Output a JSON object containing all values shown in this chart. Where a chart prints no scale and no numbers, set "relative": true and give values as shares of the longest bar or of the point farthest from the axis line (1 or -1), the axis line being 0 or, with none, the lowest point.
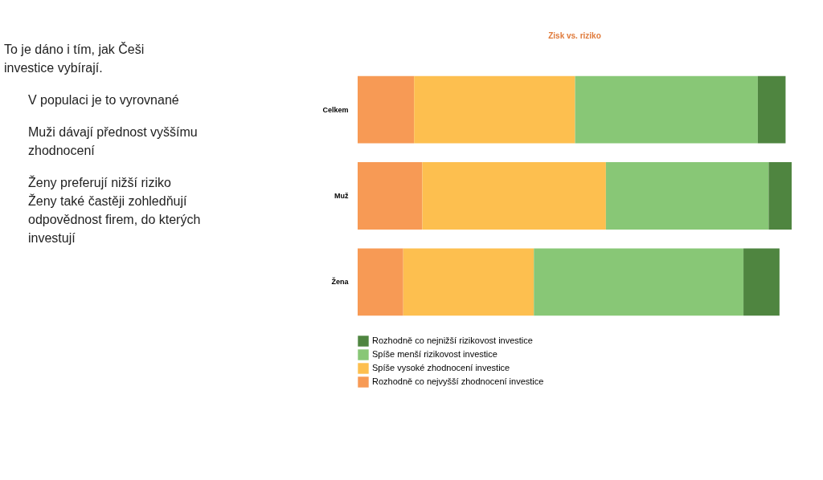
{
  "chart_data": {
    "type": "bar",
    "orientation": "horizontal",
    "stacked": true,
    "relative": true,
    "title": "Zisk vs. riziko",
    "categories": [
      "Celkem",
      "Muž",
      "Žena"
    ],
    "series": [
      {
        "name": "Rozhodně co nejvyšší zhodnocení investice",
        "color": "#f79a55",
        "values": [
          0.13,
          0.149,
          0.105
        ]
      },
      {
        "name": "Spíše vysoké zhodnocení investice",
        "color": "#fdbf4f",
        "values": [
          0.371,
          0.423,
          0.301
        ]
      },
      {
        "name": "Spíše menší rizikovost investice",
        "color": "#88c776",
        "values": [
          0.421,
          0.375,
          0.483
        ]
      },
      {
        "name": "Rozhodně co nejnižší rizikovost investice",
        "color": "#4f8540",
        "values": [
          0.064,
          0.053,
          0.083
        ]
      }
    ],
    "legend": "bottom left",
    "annotations": [
      "To je dáno i tím, jak Češi investice vybírají.",
      "V populaci je to vyrovnané",
      "Muži dávají přednost vyššímu zhodnocení",
      "Ženy preferují nižší riziko",
      "Ženy také častěji zohledňují odpovědnost firem, do kterých investují"
    ]
  }
}
